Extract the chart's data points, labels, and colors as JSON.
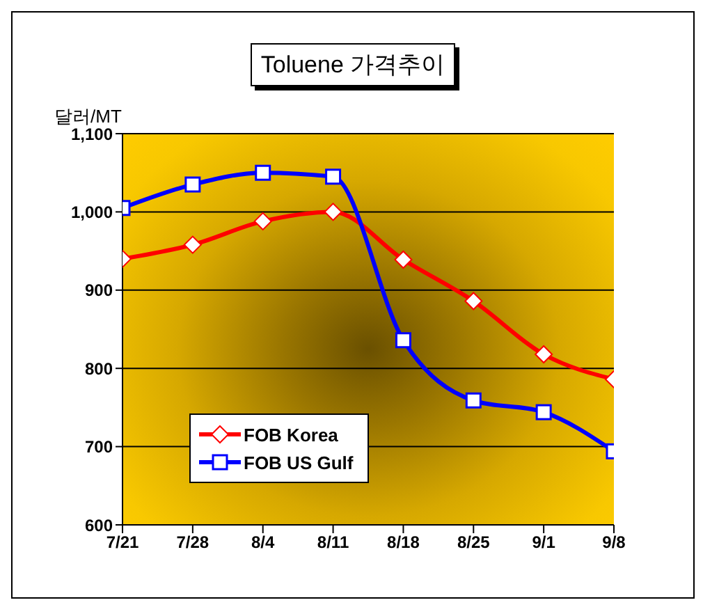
{
  "chart_data": {
    "type": "line",
    "title": "Toluene 가격추이",
    "ylabel": "달러/MT",
    "categories": [
      "7/21",
      "7/28",
      "8/4",
      "8/11",
      "8/18",
      "8/25",
      "9/1",
      "9/8"
    ],
    "series": [
      {
        "name": "FOB Korea",
        "color": "#ff0000",
        "marker": "diamond",
        "values": [
          940,
          958,
          988,
          1000,
          939,
          886,
          818,
          786
        ]
      },
      {
        "name": "FOB US Gulf",
        "color": "#0000ff",
        "marker": "square",
        "values": [
          1005,
          1035,
          1050,
          1045,
          836,
          759,
          744,
          694
        ]
      }
    ],
    "ylim": [
      600,
      1100
    ],
    "yticks": [
      600,
      700,
      800,
      900,
      {
        "value": 1000,
        "label": "1,000"
      },
      {
        "value": 1100,
        "label": "1,100"
      }
    ],
    "grid": "y",
    "legend": "bottom left"
  }
}
